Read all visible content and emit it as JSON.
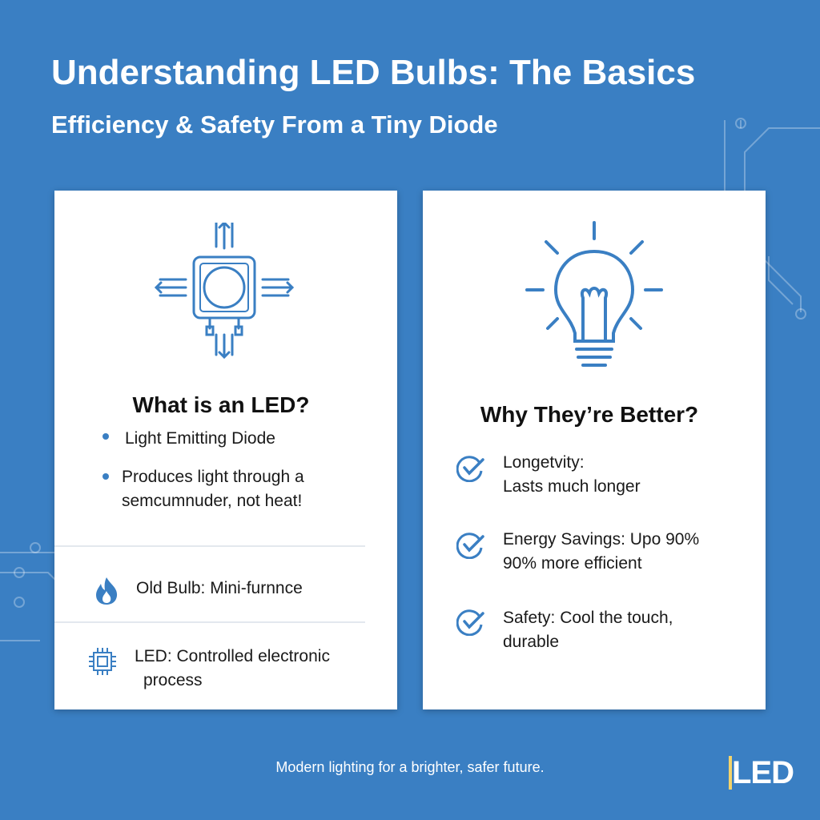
{
  "header": {
    "title": "Understanding LED Bulbs: The Basics",
    "subtitle": "Efficiency & Safety From a Tiny Diode"
  },
  "left_card": {
    "heading": "What is an LED?",
    "bullets": [
      "Light Emitting Diode",
      "Produces light through a",
      "semcumnuder, not heat!"
    ],
    "comparisons": [
      {
        "icon": "flame-icon",
        "text": "Old Bulb: Mini-furnnce"
      },
      {
        "icon": "chip-icon",
        "line1": "LED: Controlled electronic",
        "line2": "process"
      }
    ]
  },
  "right_card": {
    "heading": "Why They’re Better?",
    "items": [
      {
        "title": "Longetvity:",
        "desc": "Lasts much longer"
      },
      {
        "title": "Energy Savings:",
        "title_rest": " Upo 90%",
        "desc": "90% more efficient"
      },
      {
        "title": "Safety:",
        "title_rest": " Cool the touch,",
        "desc": "durable"
      }
    ]
  },
  "footer": {
    "tagline": "Modern lighting for a brighter, safer future.",
    "logo": "LED"
  },
  "colors": {
    "background": "#3a7fc3",
    "accent": "#3a7fc3",
    "card": "#ffffff"
  }
}
